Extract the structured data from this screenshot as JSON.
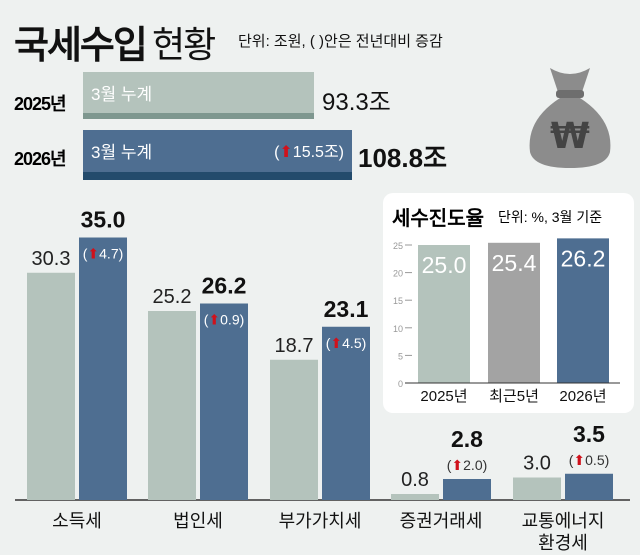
{
  "header": {
    "title": "국세수입",
    "title2": "현황",
    "unit": "단위: 조원, ( )안은 전년대비 증감"
  },
  "summary": [
    {
      "year": "2025년",
      "label": "3월 누계",
      "value": "93.3조",
      "amount": 93.3
    },
    {
      "year": "2026년",
      "label": "3월 누계",
      "change": "15.5조",
      "value": "108.8조",
      "amount": 108.8
    }
  ],
  "colors": {
    "prev": "#b4c3bc",
    "curr": "#4e6e91",
    "avg": "#a3a3a3",
    "up": "#d0111b",
    "bg": "#eef1f0"
  },
  "chart_data": [
    {
      "type": "bar",
      "title": "국세수입 현황",
      "unit": "조원",
      "categories": [
        "소득세",
        "법인세",
        "부가가치세",
        "증권거래세",
        "교통에너지\n환경세"
      ],
      "series": [
        {
          "name": "2025년",
          "values": [
            30.3,
            25.2,
            18.7,
            0.8,
            3.0
          ],
          "labels": [
            "30.3",
            "25.2",
            "18.7",
            "0.8",
            "3.0"
          ]
        },
        {
          "name": "2026년",
          "values": [
            35.0,
            26.2,
            23.1,
            2.8,
            3.5
          ],
          "labels": [
            "35.0",
            "26.2",
            "23.1",
            "2.8",
            "3.5"
          ],
          "changes": [
            "4.7",
            "0.9",
            "4.5",
            "2.0",
            "0.5"
          ]
        }
      ]
    },
    {
      "type": "bar",
      "title": "세수진도율",
      "unit": "단위: %, 3월 기준",
      "categories": [
        "2025년",
        "최근5년",
        "2026년"
      ],
      "values": [
        25.0,
        25.4,
        26.2
      ],
      "labels": [
        "25.0",
        "25.4",
        "26.2"
      ],
      "yticks": [
        "0",
        "5",
        "10",
        "15",
        "20",
        "25"
      ],
      "ylim": [
        0,
        26.5
      ]
    }
  ]
}
